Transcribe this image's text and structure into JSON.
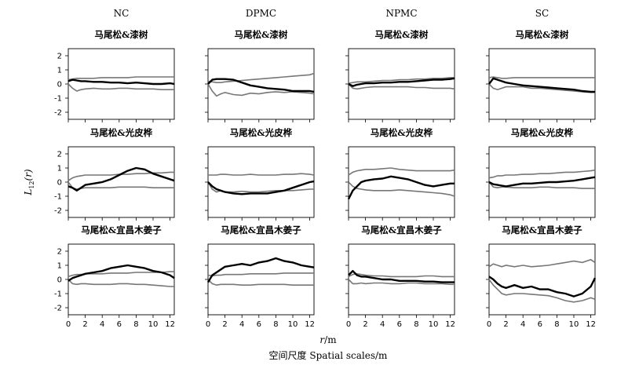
{
  "figure": {
    "column_titles": [
      "NC",
      "DPMC",
      "NPMC",
      "SC"
    ],
    "row_titles": [
      "马尾松&漆树",
      "马尾松&光皮桦",
      "马尾松&宜昌木姜子"
    ],
    "ylabel": "L12(r)",
    "ylabel_main": "L",
    "ylabel_sub": "12",
    "ylabel_tail": "(r)",
    "xlabel_unit_var": "r",
    "xlabel_unit_rest": "/m",
    "xlabel_bottom": "空间尺度 Spatial scales/m"
  },
  "chart_data": {
    "type": "line",
    "layout": "3x4 small multiples",
    "xlim": [
      0,
      12.5
    ],
    "ylim": [
      -2.5,
      2.5
    ],
    "x_ticks": [
      0,
      2,
      4,
      6,
      8,
      10,
      12
    ],
    "y_ticks": [
      -2,
      -1,
      0,
      1,
      2
    ],
    "x_tick_labels": [
      "0",
      "2",
      "4",
      "6",
      "8",
      "10",
      "12"
    ],
    "y_tick_labels": [
      "-2",
      "-1",
      "0",
      "1",
      "2"
    ],
    "x_samples": [
      0,
      0.5,
      1,
      1.5,
      2,
      3,
      4,
      5,
      6,
      7,
      8,
      9,
      10,
      11,
      12,
      12.5
    ],
    "colors": {
      "observed": "#000000",
      "envelope": "#777777"
    },
    "panels": [
      {
        "row": 0,
        "col": 0,
        "observed": [
          0.2,
          0.3,
          0.25,
          0.2,
          0.2,
          0.15,
          0.15,
          0.1,
          0.1,
          0.05,
          0.1,
          0.05,
          0.0,
          0.0,
          0.05,
          0.0
        ],
        "upper": [
          0.3,
          0.35,
          0.4,
          0.4,
          0.4,
          0.4,
          0.45,
          0.45,
          0.45,
          0.45,
          0.5,
          0.5,
          0.5,
          0.5,
          0.5,
          0.5
        ],
        "lower": [
          0.0,
          -0.3,
          -0.5,
          -0.4,
          -0.35,
          -0.3,
          -0.35,
          -0.35,
          -0.3,
          -0.3,
          -0.35,
          -0.35,
          -0.35,
          -0.4,
          -0.4,
          -0.4
        ]
      },
      {
        "row": 0,
        "col": 1,
        "observed": [
          0.0,
          0.3,
          0.35,
          0.35,
          0.35,
          0.3,
          0.1,
          -0.1,
          -0.2,
          -0.3,
          -0.35,
          -0.4,
          -0.5,
          -0.5,
          -0.5,
          -0.55
        ],
        "upper": [
          0.2,
          0.15,
          0.1,
          0.1,
          0.15,
          0.2,
          0.25,
          0.3,
          0.35,
          0.4,
          0.45,
          0.5,
          0.55,
          0.6,
          0.65,
          0.75
        ],
        "lower": [
          0.0,
          -0.5,
          -0.85,
          -0.7,
          -0.6,
          -0.75,
          -0.8,
          -0.65,
          -0.7,
          -0.6,
          -0.55,
          -0.6,
          -0.55,
          -0.6,
          -0.65,
          -0.7
        ]
      },
      {
        "row": 0,
        "col": 2,
        "observed": [
          0.0,
          -0.15,
          -0.05,
          0.0,
          0.05,
          0.05,
          0.1,
          0.1,
          0.15,
          0.15,
          0.2,
          0.25,
          0.3,
          0.3,
          0.35,
          0.4
        ],
        "upper": [
          0.05,
          0.1,
          0.15,
          0.15,
          0.15,
          0.2,
          0.25,
          0.25,
          0.3,
          0.3,
          0.35,
          0.35,
          0.4,
          0.4,
          0.45,
          0.45
        ],
        "lower": [
          0.0,
          -0.3,
          -0.35,
          -0.3,
          -0.25,
          -0.2,
          -0.2,
          -0.2,
          -0.2,
          -0.2,
          -0.25,
          -0.25,
          -0.3,
          -0.3,
          -0.3,
          -0.35
        ]
      },
      {
        "row": 0,
        "col": 3,
        "observed": [
          0.0,
          0.4,
          0.3,
          0.2,
          0.1,
          0.0,
          -0.1,
          -0.15,
          -0.2,
          -0.25,
          -0.3,
          -0.35,
          -0.4,
          -0.5,
          -0.55,
          -0.55
        ],
        "upper": [
          0.45,
          0.5,
          0.45,
          0.4,
          0.4,
          0.45,
          0.45,
          0.45,
          0.45,
          0.45,
          0.45,
          0.45,
          0.45,
          0.45,
          0.45,
          0.45
        ],
        "lower": [
          0.0,
          -0.3,
          -0.4,
          -0.3,
          -0.2,
          -0.2,
          -0.2,
          -0.3,
          -0.3,
          -0.35,
          -0.4,
          -0.45,
          -0.5,
          -0.55,
          -0.6,
          -0.6
        ]
      },
      {
        "row": 1,
        "col": 0,
        "observed": [
          -0.3,
          -0.4,
          -0.6,
          -0.4,
          -0.2,
          -0.1,
          0.0,
          0.2,
          0.5,
          0.8,
          1.0,
          0.9,
          0.6,
          0.4,
          0.2,
          0.1
        ],
        "upper": [
          0.1,
          0.3,
          0.4,
          0.45,
          0.5,
          0.5,
          0.5,
          0.5,
          0.55,
          0.55,
          0.6,
          0.6,
          0.65,
          0.65,
          0.7,
          0.7
        ],
        "lower": [
          0.0,
          -0.4,
          -0.5,
          -0.45,
          -0.4,
          -0.4,
          -0.4,
          -0.4,
          -0.35,
          -0.35,
          -0.35,
          -0.35,
          -0.4,
          -0.4,
          -0.4,
          -0.4
        ]
      },
      {
        "row": 1,
        "col": 1,
        "observed": [
          0.0,
          -0.3,
          -0.5,
          -0.6,
          -0.7,
          -0.8,
          -0.85,
          -0.8,
          -0.8,
          -0.8,
          -0.7,
          -0.6,
          -0.4,
          -0.2,
          0.0,
          0.05
        ],
        "upper": [
          0.5,
          0.5,
          0.5,
          0.55,
          0.55,
          0.5,
          0.5,
          0.55,
          0.5,
          0.5,
          0.5,
          0.55,
          0.55,
          0.6,
          0.55,
          0.5
        ],
        "lower": [
          0.0,
          -0.5,
          -0.7,
          -0.6,
          -0.7,
          -0.7,
          -0.65,
          -0.7,
          -0.7,
          -0.65,
          -0.6,
          -0.6,
          -0.6,
          -0.55,
          -0.5,
          -0.5
        ]
      },
      {
        "row": 1,
        "col": 2,
        "observed": [
          -1.2,
          -0.6,
          -0.3,
          0.0,
          0.1,
          0.2,
          0.25,
          0.4,
          0.3,
          0.2,
          0.0,
          -0.2,
          -0.3,
          -0.2,
          -0.1,
          -0.1
        ],
        "upper": [
          0.5,
          0.7,
          0.8,
          0.85,
          0.9,
          0.9,
          0.95,
          1.0,
          0.9,
          0.85,
          0.8,
          0.8,
          0.8,
          0.8,
          0.8,
          0.85
        ],
        "lower": [
          0.0,
          -0.3,
          -0.45,
          -0.5,
          -0.55,
          -0.6,
          -0.6,
          -0.6,
          -0.55,
          -0.6,
          -0.65,
          -0.7,
          -0.75,
          -0.8,
          -0.9,
          -1.0
        ]
      },
      {
        "row": 1,
        "col": 3,
        "observed": [
          0.0,
          -0.15,
          -0.2,
          -0.25,
          -0.3,
          -0.2,
          -0.1,
          -0.1,
          -0.05,
          0.0,
          0.0,
          0.05,
          0.1,
          0.2,
          0.3,
          0.35
        ],
        "upper": [
          0.3,
          0.35,
          0.45,
          0.45,
          0.5,
          0.5,
          0.55,
          0.55,
          0.6,
          0.6,
          0.65,
          0.7,
          0.7,
          0.75,
          0.8,
          0.85
        ],
        "lower": [
          0.0,
          -0.35,
          -0.4,
          -0.35,
          -0.35,
          -0.4,
          -0.4,
          -0.4,
          -0.35,
          -0.35,
          -0.4,
          -0.4,
          -0.4,
          -0.45,
          -0.45,
          -0.45
        ]
      },
      {
        "row": 2,
        "col": 0,
        "observed": [
          -0.1,
          0.1,
          0.2,
          0.3,
          0.4,
          0.5,
          0.6,
          0.8,
          0.9,
          1.0,
          0.9,
          0.8,
          0.6,
          0.5,
          0.3,
          0.1
        ],
        "upper": [
          0.2,
          0.3,
          0.35,
          0.35,
          0.4,
          0.4,
          0.4,
          0.45,
          0.45,
          0.45,
          0.5,
          0.5,
          0.5,
          0.5,
          0.55,
          0.55
        ],
        "lower": [
          0.0,
          -0.3,
          -0.35,
          -0.3,
          -0.3,
          -0.35,
          -0.35,
          -0.35,
          -0.3,
          -0.3,
          -0.35,
          -0.35,
          -0.4,
          -0.45,
          -0.5,
          -0.5
        ]
      },
      {
        "row": 2,
        "col": 1,
        "observed": [
          -0.2,
          0.3,
          0.5,
          0.7,
          0.9,
          1.0,
          1.1,
          1.0,
          1.2,
          1.3,
          1.5,
          1.3,
          1.2,
          1.0,
          0.9,
          0.85
        ],
        "upper": [
          0.3,
          0.25,
          0.3,
          0.3,
          0.35,
          0.35,
          0.35,
          0.4,
          0.4,
          0.4,
          0.4,
          0.45,
          0.45,
          0.45,
          0.45,
          0.45
        ],
        "lower": [
          0.0,
          -0.3,
          -0.4,
          -0.35,
          -0.35,
          -0.35,
          -0.4,
          -0.4,
          -0.35,
          -0.35,
          -0.35,
          -0.35,
          -0.4,
          -0.4,
          -0.4,
          -0.4
        ]
      },
      {
        "row": 2,
        "col": 2,
        "observed": [
          0.3,
          0.6,
          0.3,
          0.2,
          0.2,
          0.1,
          0.0,
          0.0,
          -0.1,
          -0.1,
          -0.1,
          -0.15,
          -0.15,
          -0.2,
          -0.2,
          -0.2
        ],
        "upper": [
          0.2,
          0.35,
          0.4,
          0.35,
          0.3,
          0.25,
          0.25,
          0.2,
          0.2,
          0.2,
          0.2,
          0.25,
          0.25,
          0.2,
          0.2,
          0.2
        ],
        "lower": [
          0.0,
          -0.3,
          -0.3,
          -0.25,
          -0.3,
          -0.25,
          -0.25,
          -0.3,
          -0.3,
          -0.25,
          -0.25,
          -0.3,
          -0.3,
          -0.3,
          -0.35,
          -0.35
        ]
      },
      {
        "row": 2,
        "col": 3,
        "observed": [
          0.2,
          0.0,
          -0.3,
          -0.5,
          -0.6,
          -0.4,
          -0.6,
          -0.5,
          -0.7,
          -0.7,
          -0.9,
          -1.0,
          -1.2,
          -1.0,
          -0.5,
          0.1
        ],
        "upper": [
          0.9,
          1.1,
          1.0,
          0.9,
          1.0,
          0.9,
          1.0,
          0.9,
          0.95,
          1.0,
          1.1,
          1.2,
          1.3,
          1.2,
          1.4,
          1.2
        ],
        "lower": [
          0.0,
          -0.4,
          -0.7,
          -1.0,
          -1.1,
          -1.0,
          -1.0,
          -1.05,
          -1.1,
          -1.15,
          -1.3,
          -1.5,
          -1.6,
          -1.5,
          -1.3,
          -1.4
        ]
      }
    ]
  }
}
